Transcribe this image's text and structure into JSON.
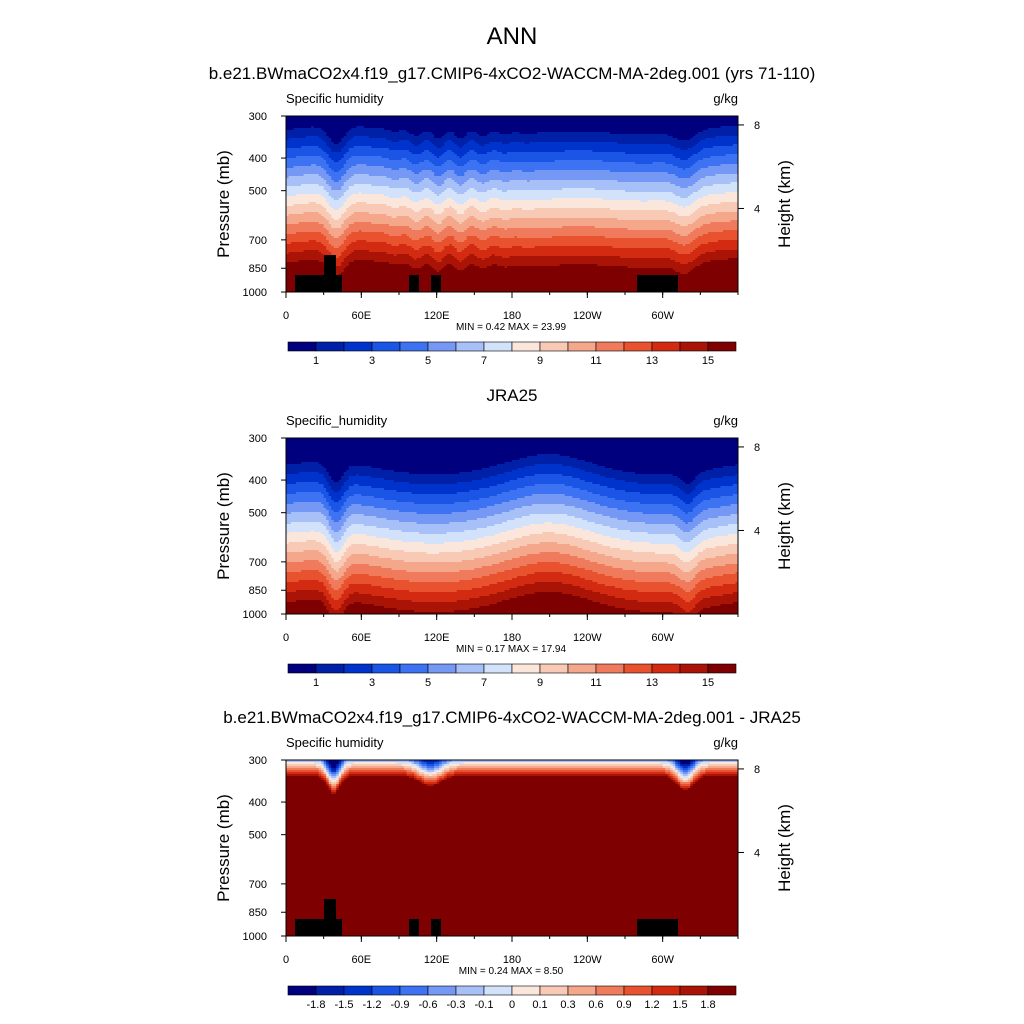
{
  "title": "ANN",
  "chart_data": [
    {
      "type": "heatmap",
      "title": "b.e21.BWmaCO2x4.f19_g17.CMIP6-4xCO2-WACCM-MA-2deg.001 (yrs 71-110)",
      "left_label": "Specific humidity",
      "units": "g/kg",
      "ylabel": "Pressure (mb)",
      "ylabel_right": "Height (km)",
      "x_ticks": [
        "0",
        "60E",
        "120E",
        "180",
        "120W",
        "60W"
      ],
      "x_tick_values": [
        0,
        60,
        120,
        180,
        240,
        300
      ],
      "xlim": [
        0,
        360
      ],
      "y_ticks": [
        "300",
        "400",
        "500",
        "700",
        "850",
        "1000"
      ],
      "y_tick_values": [
        300,
        400,
        500,
        700,
        850,
        1000
      ],
      "ylim": [
        1000,
        300
      ],
      "y_scale": "log",
      "right_ticks": [
        "8",
        "4"
      ],
      "right_tick_values": [
        8,
        4
      ],
      "stats": "MIN =   0.42  MAX =   23.99",
      "colorbar_labels": [
        "1",
        "3",
        "5",
        "7",
        "9",
        "11",
        "13",
        "15"
      ],
      "min": 0.42,
      "max": 23.99,
      "has_terrain": true
    },
    {
      "type": "heatmap",
      "title": "JRA25",
      "left_label": "Specific_humidity",
      "units": "g/kg",
      "ylabel": "Pressure (mb)",
      "ylabel_right": "Height (km)",
      "x_ticks": [
        "0",
        "60E",
        "120E",
        "180",
        "120W",
        "60W"
      ],
      "x_tick_values": [
        0,
        60,
        120,
        180,
        240,
        300
      ],
      "xlim": [
        0,
        360
      ],
      "y_ticks": [
        "300",
        "400",
        "500",
        "700",
        "850",
        "1000"
      ],
      "y_tick_values": [
        300,
        400,
        500,
        700,
        850,
        1000
      ],
      "ylim": [
        1000,
        300
      ],
      "y_scale": "log",
      "right_ticks": [
        "8",
        "4"
      ],
      "right_tick_values": [
        8,
        4
      ],
      "stats": "MIN =   0.17  MAX =   17.94",
      "colorbar_labels": [
        "1",
        "3",
        "5",
        "7",
        "9",
        "11",
        "13",
        "15"
      ],
      "min": 0.17,
      "max": 17.94,
      "has_terrain": false
    },
    {
      "type": "heatmap",
      "title": "b.e21.BWmaCO2x4.f19_g17.CMIP6-4xCO2-WACCM-MA-2deg.001 - JRA25",
      "left_label": "Specific humidity",
      "units": "g/kg",
      "ylabel": "Pressure (mb)",
      "ylabel_right": "Height (km)",
      "x_ticks": [
        "0",
        "60E",
        "120E",
        "180",
        "120W",
        "60W"
      ],
      "x_tick_values": [
        0,
        60,
        120,
        180,
        240,
        300
      ],
      "xlim": [
        0,
        360
      ],
      "y_ticks": [
        "300",
        "400",
        "500",
        "700",
        "850",
        "1000"
      ],
      "y_tick_values": [
        300,
        400,
        500,
        700,
        850,
        1000
      ],
      "ylim": [
        1000,
        300
      ],
      "y_scale": "log",
      "right_ticks": [
        "8",
        "4"
      ],
      "right_tick_values": [
        8,
        4
      ],
      "stats": "MIN =   0.24  MAX =   8.50",
      "colorbar_labels": [
        "-1.8",
        "-1.5",
        "-1.2",
        "-0.9",
        "-0.6",
        "-0.3",
        "-0.1",
        "0",
        "0.1",
        "0.3",
        "0.6",
        "0.9",
        "1.2",
        "1.5",
        "1.8"
      ],
      "min": 0.24,
      "max": 8.5,
      "has_terrain": true
    }
  ],
  "colors": {
    "scale16": [
      "#00007f",
      "#0020a8",
      "#0033cc",
      "#1a55e6",
      "#3d73f2",
      "#7598f5",
      "#a8c0f8",
      "#d2e2fa",
      "#fbe6dc",
      "#f8c9b4",
      "#f4a78a",
      "#ef7b5c",
      "#e8522f",
      "#d22b12",
      "#aa1406",
      "#7f0000"
    ],
    "scale16_diff": [
      "#00007f",
      "#0020a8",
      "#0033cc",
      "#1a55e6",
      "#3d73f2",
      "#7598f5",
      "#a8c0f8",
      "#d2e2fa",
      "#fbe6dc",
      "#f8c9b4",
      "#f4a78a",
      "#ef7b5c",
      "#e8522f",
      "#d22b12",
      "#aa1406",
      "#7f0000"
    ],
    "terrain": "#000000"
  }
}
